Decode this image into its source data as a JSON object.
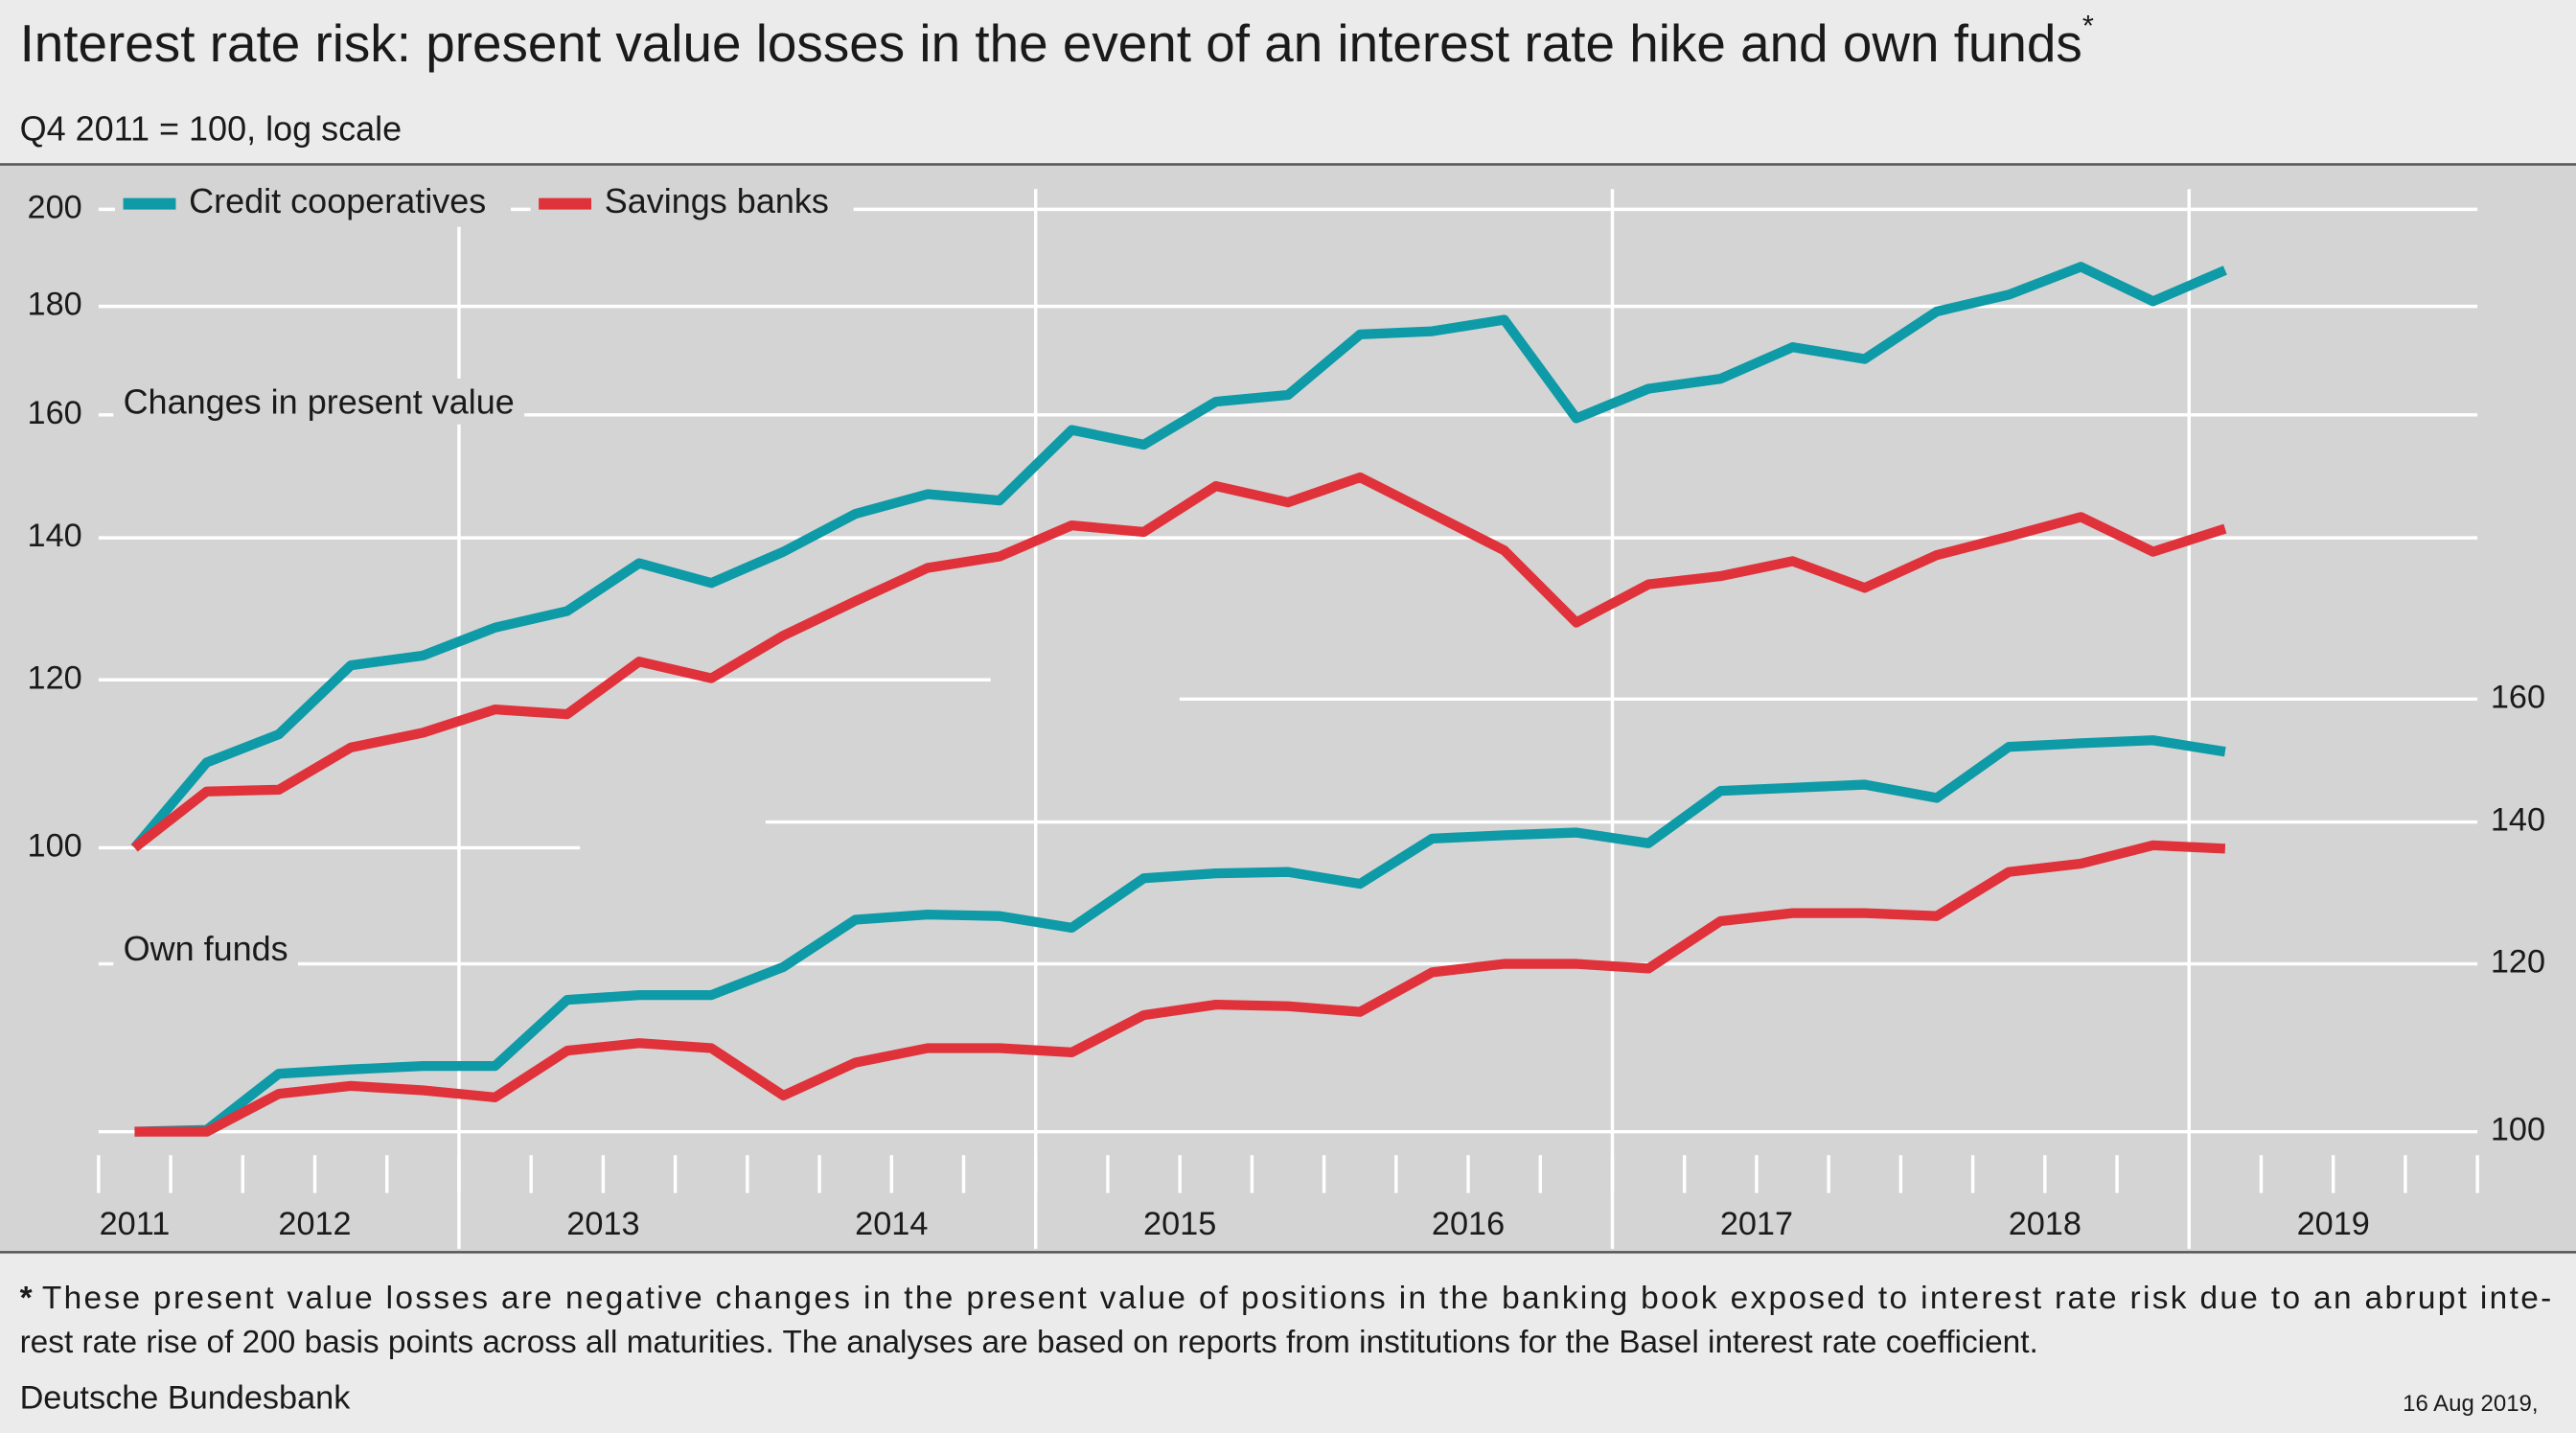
{
  "chart_data": {
    "type": "line",
    "title": "Interest rate risk: present value losses in the event of an interest rate hike and own funds",
    "note_marker": "*",
    "subtitle": "Q4 2011 = 100, log scale",
    "footnote_lines": [
      "These present value losses are negative changes in the present value of positions in the banking book exposed to interest rate risk due to an abrupt inte-",
      "rest rate rise of 200 basis points across all maturities. The analyses are based on reports from institutions for the Basel interest rate coefficient."
    ],
    "source": "Deutsche Bundesbank",
    "date": "16 Aug 2019,",
    "annotations": [
      "Changes in present value",
      "Own funds"
    ],
    "log_scale": true,
    "legend": "top-left",
    "x": [
      2011.875,
      2012.125,
      2012.375,
      2012.625,
      2012.875,
      2013.125,
      2013.375,
      2013.625,
      2013.875,
      2014.125,
      2014.375,
      2014.625,
      2014.875,
      2015.125,
      2015.375,
      2015.625,
      2015.875,
      2016.125,
      2016.375,
      2016.625,
      2016.875,
      2017.125,
      2017.375,
      2017.625,
      2017.875,
      2018.125,
      2018.375,
      2018.625,
      2018.875,
      2019.125
    ],
    "xlim": [
      2011.75,
      2020
    ],
    "xticks": [
      2011,
      2012,
      2013,
      2014,
      2015,
      2016,
      2017,
      2018,
      2019
    ],
    "ylim": [
      72,
      210
    ],
    "yticks": [
      100,
      120,
      140,
      160,
      180,
      200
    ],
    "y2lim": [
      98,
      286
    ],
    "y2ticks": [
      100,
      120,
      140,
      160
    ],
    "series": [
      {
        "name": "Credit cooperatives",
        "color": "#0e9aa7",
        "values": [
          100,
          109.7,
          113.1,
          121.9,
          123.2,
          127.0,
          129.3,
          136.2,
          133.3,
          137.9,
          143.7,
          146.8,
          145.8,
          157.4,
          154.9,
          162.3,
          163.5,
          174.6,
          175.2,
          177.4,
          159.4,
          164.6,
          166.4,
          172.2,
          170.0,
          179.0,
          182.3,
          187.9,
          181.0,
          187.2
        ]
      },
      {
        "name": "Savings banks",
        "color": "#e0323a",
        "values": [
          100,
          106.3,
          106.5,
          111.5,
          113.3,
          116.2,
          115.6,
          122.4,
          120.2,
          125.9,
          130.7,
          135.5,
          137.2,
          141.9,
          140.9,
          148.1,
          145.5,
          149.5,
          143.7,
          138.1,
          127.7,
          133.1,
          134.3,
          136.5,
          132.6,
          137.4,
          140.2,
          143.2,
          137.9,
          141.4
        ]
      },
      {
        "axis": "y2",
        "color": "#0e9aa7",
        "values": [
          100,
          100.2,
          106.5,
          107.0,
          107.4,
          107.4,
          115.4,
          116.0,
          116.0,
          119.6,
          125.9,
          126.6,
          126.4,
          124.8,
          131.7,
          132.4,
          132.6,
          130.9,
          137.5,
          138.0,
          138.4,
          136.8,
          144.8,
          145.3,
          145.8,
          143.7,
          151.9,
          152.5,
          153.0,
          151.1
        ]
      },
      {
        "axis": "y2",
        "color": "#e0323a",
        "values": [
          100,
          100,
          104.2,
          105.1,
          104.6,
          103.8,
          109.2,
          110.1,
          109.5,
          104.0,
          107.8,
          109.5,
          109.5,
          109.0,
          113.5,
          114.8,
          114.6,
          113.9,
          118.9,
          120.0,
          120.0,
          119.4,
          125.7,
          126.8,
          126.8,
          126.4,
          132.6,
          133.8,
          136.5,
          136.0
        ]
      }
    ]
  }
}
